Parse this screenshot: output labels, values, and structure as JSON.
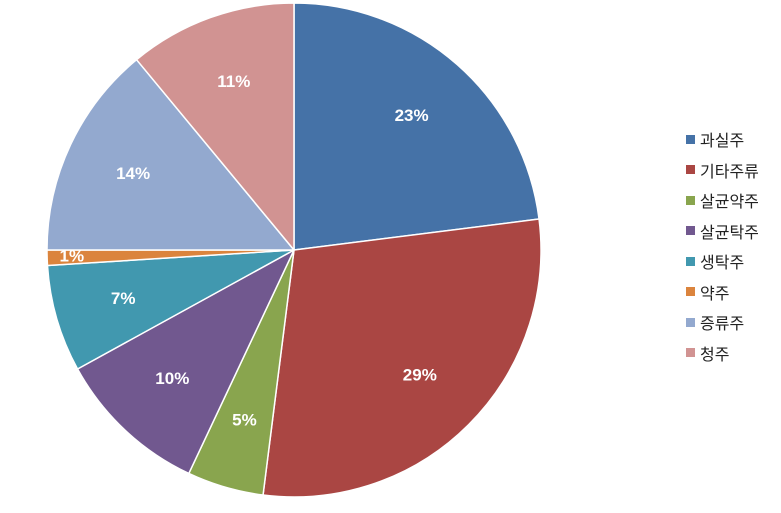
{
  "chart_data": {
    "type": "pie",
    "categories": [
      "과실주",
      "기타주류",
      "살균약주",
      "살균탁주",
      "생탁주",
      "약주",
      "증류주",
      "청주"
    ],
    "values": [
      23,
      29,
      5,
      10,
      7,
      1,
      14,
      11
    ],
    "data_labels": [
      "23%",
      "29%",
      "5%",
      "10%",
      "7%",
      "1%",
      "14%",
      "11%"
    ],
    "colors": [
      "#4572A7",
      "#AA4643",
      "#89A54E",
      "#71588F",
      "#4198AF",
      "#DB843D",
      "#93A9CF",
      "#D19392"
    ],
    "start": "12 o'clock",
    "direction": "clockwise",
    "legend_position": "right",
    "title": ""
  }
}
